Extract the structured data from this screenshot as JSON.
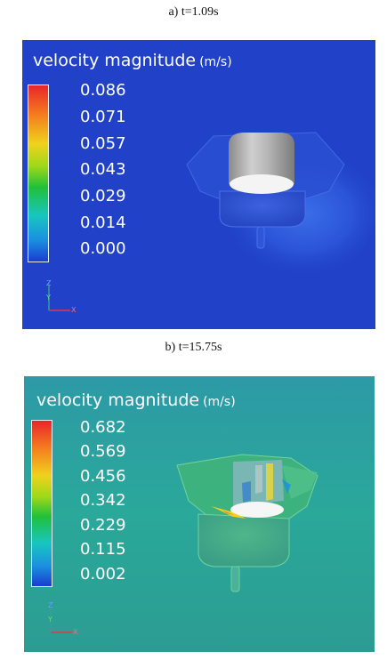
{
  "panels": [
    {
      "caption": "a) t=1.09s",
      "title": "velocity magnitude",
      "unit": "(m/s)",
      "ticks": [
        "0.086",
        "0.071",
        "0.057",
        "0.043",
        "0.029",
        "0.014",
        "0.000"
      ],
      "axis_labels": {
        "z": "Z",
        "y": "Y",
        "x": "X"
      },
      "colors": {
        "background": "#1f3fc6"
      }
    },
    {
      "caption": "b) t=15.75s",
      "title": "velocity magnitude",
      "unit": "(m/s)",
      "ticks": [
        "0.682",
        "0.569",
        "0.456",
        "0.342",
        "0.229",
        "0.115",
        "0.002"
      ],
      "axis_labels": {
        "z": "Z",
        "y": "Y",
        "x": "X"
      },
      "colors": {
        "background": "#2aa69a"
      }
    }
  ]
}
